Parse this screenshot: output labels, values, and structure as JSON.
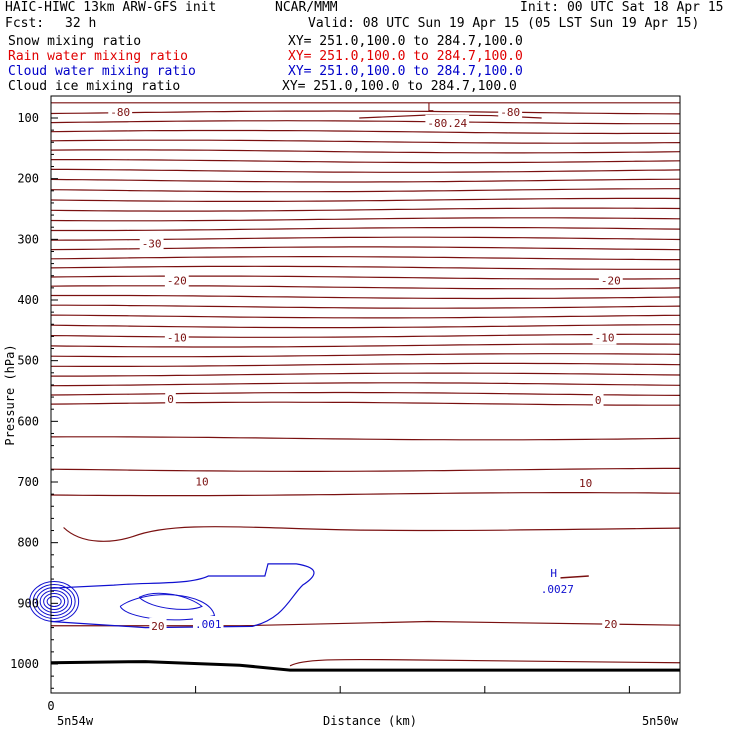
{
  "header": {
    "model": "HAIC-HIWC 13km ARW-GFS init",
    "org": "NCAR/MMM",
    "init": "Init: 00 UTC Sat 18 Apr 15",
    "fcst_label": "Fcst:",
    "fcst_value": "32 h",
    "valid": "Valid: 08 UTC Sun 19 Apr 15 (05 LST Sun 19 Apr 15)"
  },
  "legend": [
    {
      "name": "Snow mixing ratio",
      "xy": "XY= 251.0,100.0 to 284.7,100.0",
      "color": "#000000"
    },
    {
      "name": "Rain water mixing ratio",
      "xy": "XY= 251.0,100.0 to 284.7,100.0",
      "color": "#e00000"
    },
    {
      "name": "Cloud water mixing ratio",
      "xy": "XY= 251.0,100.0 to 284.7,100.0",
      "color": "#0000c8"
    },
    {
      "name": "Cloud ice mixing ratio",
      "xy": "XY= 251.0,100.0 to 284.7,100.0",
      "color": "#000000"
    }
  ],
  "chart_data": {
    "type": "contour",
    "xlabel": "Distance (km)",
    "ylabel": "Pressure (hPa)",
    "x_tick_labels": [
      "0"
    ],
    "x_end_labels": {
      "left": "5n54w",
      "right": "5n50w"
    },
    "y_ticks": [
      100,
      200,
      300,
      400,
      500,
      600,
      700,
      800,
      900,
      1000
    ],
    "ylim": [
      1050,
      50
    ],
    "temperature_color": "#7a1010",
    "cloud_water_color": "#1010d0",
    "temperature_labels": [
      {
        "value": "-80",
        "x": 0.11,
        "p": 90
      },
      {
        "value": "-80",
        "x": 0.73,
        "p": 90
      },
      {
        "value": "-30",
        "x": 0.16,
        "p": 307
      },
      {
        "value": "-20",
        "x": 0.2,
        "p": 368
      },
      {
        "value": "-20",
        "x": 0.89,
        "p": 368
      },
      {
        "value": "-10",
        "x": 0.2,
        "p": 462
      },
      {
        "value": "-10",
        "x": 0.88,
        "p": 462
      },
      {
        "value": "0",
        "x": 0.19,
        "p": 563
      },
      {
        "value": "0",
        "x": 0.87,
        "p": 565
      },
      {
        "value": "10",
        "x": 0.24,
        "p": 699
      },
      {
        "value": "10",
        "x": 0.85,
        "p": 702
      },
      {
        "value": "20",
        "x": 0.17,
        "p": 937
      },
      {
        "value": "20",
        "x": 0.89,
        "p": 934
      }
    ],
    "extrema": [
      {
        "kind": "L",
        "value": "-80.24",
        "x": 0.63,
        "p": 98
      },
      {
        "kind": "H",
        "value": ".0027",
        "x": 0.805,
        "p": 870
      }
    ],
    "cloud_water_labels": [
      {
        "value": ".001",
        "x": 0.25,
        "p": 934
      }
    ]
  }
}
